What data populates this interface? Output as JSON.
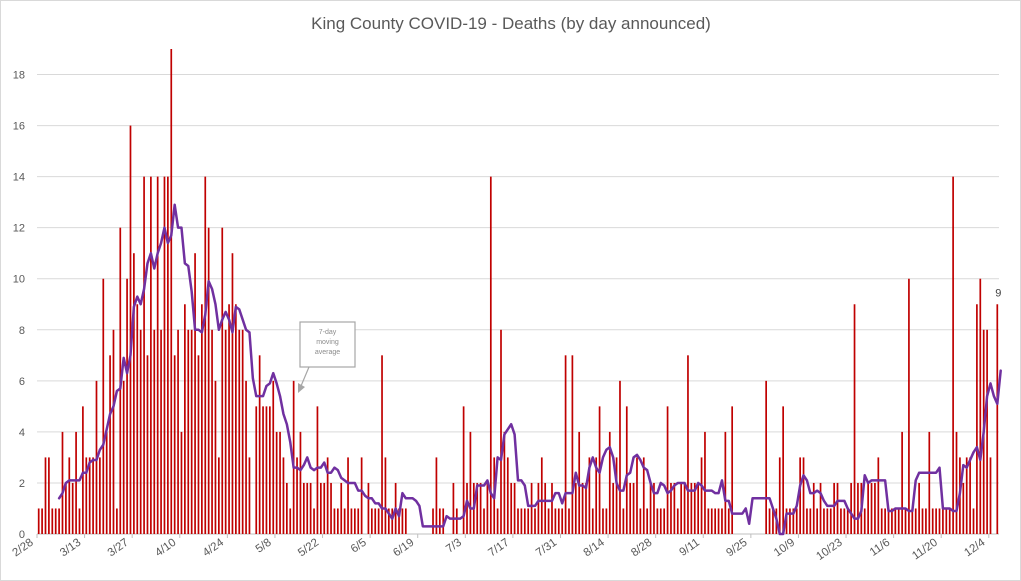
{
  "chart_data": {
    "type": "bar",
    "title": "King County COVID-19 - Deaths (by day announced)",
    "xlabel": "",
    "ylabel": "",
    "ylim": [
      0,
      19
    ],
    "yticks": [
      0,
      2,
      4,
      6,
      8,
      10,
      12,
      14,
      16,
      18
    ],
    "grid": true,
    "x_start_date": "2/28",
    "x_tick_labels": [
      "2/28",
      "3/13",
      "3/27",
      "4/10",
      "4/24",
      "5/8",
      "5/22",
      "6/5",
      "6/19",
      "7/3",
      "7/17",
      "7/31",
      "8/14",
      "8/28",
      "9/11",
      "9/25",
      "10/9",
      "10/23",
      "11/6",
      "11/20",
      "12/4"
    ],
    "bar_color": "#c00000",
    "line_color": "#7030a0",
    "series": [
      {
        "name": "Deaths",
        "type": "bar",
        "values": [
          1,
          1,
          3,
          3,
          1,
          1,
          1,
          4,
          2,
          3,
          2,
          4,
          1,
          5,
          3,
          3,
          3,
          6,
          3,
          10,
          4,
          7,
          8,
          1,
          12,
          6,
          10,
          16,
          11,
          9,
          8,
          14,
          7,
          14,
          8,
          14,
          8,
          14,
          14,
          19,
          7,
          8,
          4,
          9,
          8,
          8,
          11,
          7,
          9,
          14,
          12,
          8,
          6,
          3,
          12,
          8,
          9,
          11,
          9,
          8,
          8,
          6,
          3,
          0,
          5,
          7,
          5,
          5,
          5,
          6,
          4,
          4,
          3,
          2,
          1,
          6,
          3,
          4,
          2,
          2,
          2,
          1,
          5,
          2,
          2,
          3,
          2,
          1,
          1,
          2,
          1,
          3,
          1,
          1,
          1,
          3,
          0,
          2,
          1,
          1,
          1,
          7,
          3,
          1,
          1,
          2,
          1,
          1,
          1,
          0,
          0,
          0,
          0,
          0,
          0,
          0,
          1,
          3,
          1,
          1,
          0,
          0,
          2,
          1,
          0,
          5,
          2,
          4,
          2,
          2,
          2,
          1,
          2,
          14,
          3,
          1,
          8,
          4,
          3,
          2,
          2,
          1,
          1,
          1,
          1,
          2,
          1,
          2,
          3,
          2,
          1,
          2,
          1,
          1,
          1,
          7,
          1,
          7,
          2,
          4,
          2,
          2,
          3,
          1,
          3,
          5,
          1,
          1,
          4,
          2,
          3,
          6,
          1,
          5,
          2,
          2,
          3,
          1,
          3,
          1,
          2,
          2,
          1,
          1,
          1,
          5,
          2,
          2,
          1,
          2,
          2,
          7,
          2,
          2,
          2,
          3,
          4,
          1,
          1,
          1,
          1,
          1,
          4,
          1,
          5,
          0,
          0,
          0,
          0,
          0,
          0,
          0,
          0,
          0,
          6,
          1,
          1,
          1,
          3,
          5,
          1,
          1,
          1,
          1,
          3,
          3,
          1,
          1,
          2,
          1,
          2,
          1,
          1,
          1,
          2,
          2,
          1,
          1,
          1,
          2,
          9,
          2,
          2,
          1,
          2,
          2,
          2,
          3,
          1,
          1,
          1,
          1,
          1,
          1,
          4,
          1,
          10,
          1,
          1,
          2,
          1,
          1,
          4,
          1,
          1,
          1,
          1,
          1,
          1,
          14,
          4,
          3,
          2,
          3,
          3,
          1,
          9,
          10,
          8,
          8,
          3,
          0,
          9
        ]
      },
      {
        "name": "7-day moving average",
        "type": "line",
        "values": [
          null,
          null,
          null,
          null,
          null,
          null,
          1.4,
          1.6,
          2.0,
          2.1,
          2.1,
          2.1,
          2.1,
          2.4,
          2.4,
          2.8,
          2.9,
          2.9,
          3.3,
          3.5,
          4.1,
          4.7,
          5.0,
          5.6,
          5.7,
          6.9,
          6.3,
          7.0,
          8.9,
          9.3,
          9.0,
          9.6,
          10.6,
          11.0,
          10.4,
          11.0,
          11.4,
          12.0,
          11.4,
          11.7,
          12.9,
          12.0,
          12.0,
          10.6,
          10.5,
          9.5,
          8.0,
          8.0,
          7.9,
          8.6,
          9.9,
          9.6,
          9.0,
          8.0,
          8.4,
          8.7,
          8.4,
          7.9,
          8.9,
          8.8,
          8.4,
          8.0,
          7.9,
          6.1,
          5.4,
          5.4,
          5.4,
          5.8,
          5.9,
          6.3,
          5.9,
          5.4,
          4.7,
          4.3,
          3.6,
          2.6,
          2.6,
          2.5,
          2.7,
          3.0,
          2.6,
          2.5,
          2.6,
          2.6,
          2.8,
          2.4,
          2.4,
          2.6,
          2.5,
          2.2,
          2.1,
          2.0,
          2.0,
          2.0,
          1.7,
          1.7,
          1.5,
          1.4,
          1.4,
          1.2,
          1.2,
          1.0,
          1.0,
          0.8,
          0.6,
          1.0,
          0.7,
          1.6,
          1.4,
          1.4,
          1.4,
          1.3,
          1.1,
          0.3,
          0.3,
          0.3,
          0.3,
          0.3,
          0.3,
          0.3,
          0.7,
          0.6,
          0.6,
          0.6,
          0.6,
          0.7,
          1.3,
          1.0,
          1.0,
          1.9,
          1.9,
          1.9,
          2.1,
          1.6,
          1.4,
          3.0,
          2.9,
          3.9,
          4.1,
          4.3,
          3.9,
          2.1,
          2.1,
          1.9,
          1.1,
          1.1,
          1.1,
          1.3,
          1.3,
          1.3,
          1.3,
          1.3,
          1.6,
          1.6,
          1.2,
          1.6,
          1.6,
          1.6,
          2.4,
          1.9,
          1.9,
          1.8,
          2.6,
          3.0,
          2.6,
          2.4,
          3.0,
          3.3,
          3.4,
          3.0,
          2.0,
          1.7,
          1.7,
          2.3,
          2.4,
          3.0,
          3.1,
          2.9,
          2.6,
          2.5,
          2.0,
          1.6,
          1.6,
          2.0,
          1.9,
          1.6,
          1.7,
          1.9,
          2.0,
          2.0,
          2.0,
          1.7,
          1.7,
          1.7,
          2.0,
          1.9,
          1.7,
          1.7,
          1.7,
          1.6,
          1.6,
          2.1,
          1.3,
          1.3,
          0.8,
          0.8,
          0.8,
          0.8,
          1.0,
          0.4,
          1.4,
          1.4,
          1.4,
          1.4,
          1.4,
          1.4,
          1.0,
          0.6,
          0.0,
          0.0,
          0.8,
          0.8,
          0.8,
          1.1,
          1.9,
          2.3,
          2.1,
          1.6,
          1.6,
          1.7,
          1.6,
          1.3,
          1.1,
          1.1,
          1.1,
          1.3,
          1.3,
          1.3,
          1.0,
          0.8,
          0.6,
          0.6,
          0.9,
          2.3,
          2.0,
          2.1,
          2.1,
          2.1,
          2.1,
          2.1,
          0.9,
          0.9,
          1.0,
          1.0,
          1.0,
          1.0,
          0.9,
          0.9,
          2.1,
          2.4,
          2.4,
          2.4,
          2.4,
          2.4,
          2.4,
          2.6,
          1.0,
          1.0,
          1.0,
          0.9,
          0.9,
          1.6,
          2.7,
          2.6,
          2.9,
          3.2,
          3.4,
          2.9,
          4.0,
          5.4,
          5.9,
          5.4,
          5.1,
          6.4
        ]
      }
    ],
    "annotations": [
      {
        "text_lines": [
          "7-day",
          "moving",
          "average"
        ]
      }
    ],
    "last_value_label": "9"
  }
}
